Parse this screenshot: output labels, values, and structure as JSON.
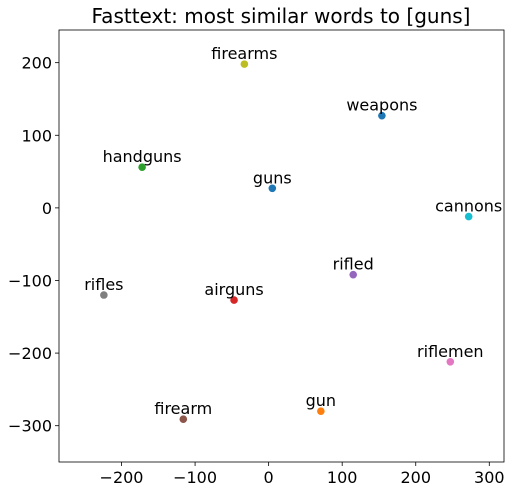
{
  "chart_data": {
    "type": "scatter",
    "title": "Fasttext: most similar words to [guns]",
    "xlabel": "",
    "ylabel": "",
    "xlim": [
      -285,
      320
    ],
    "ylim": [
      -350,
      245
    ],
    "xticks": [
      -200,
      -100,
      0,
      100,
      200,
      300
    ],
    "yticks": [
      200,
      100,
      0,
      -100,
      -200,
      -300
    ],
    "xtick_labels": [
      "−200",
      "−100",
      "0",
      "100",
      "200",
      "300"
    ],
    "ytick_labels": [
      "200",
      "100",
      "0",
      "−100",
      "−200",
      "−300"
    ],
    "grid": false,
    "points": [
      {
        "label": "guns",
        "x": 5,
        "y": 27,
        "color": "#1f77b4"
      },
      {
        "label": "gun",
        "x": 71,
        "y": -280,
        "color": "#ff7f0e"
      },
      {
        "label": "handguns",
        "x": -172,
        "y": 56,
        "color": "#2ca02c"
      },
      {
        "label": "airguns",
        "x": -47,
        "y": -127,
        "color": "#d62728"
      },
      {
        "label": "rifled",
        "x": 115,
        "y": -92,
        "color": "#9467bd"
      },
      {
        "label": "firearm",
        "x": -116,
        "y": -291,
        "color": "#8c564b"
      },
      {
        "label": "riflemen",
        "x": 247,
        "y": -212,
        "color": "#e377c2"
      },
      {
        "label": "rifles",
        "x": -224,
        "y": -120,
        "color": "#7f7f7f"
      },
      {
        "label": "firearms",
        "x": -33,
        "y": 198,
        "color": "#bcbd22"
      },
      {
        "label": "cannons",
        "x": 272,
        "y": -12,
        "color": "#17becf"
      },
      {
        "label": "weapons",
        "x": 154,
        "y": 127,
        "color": "#1f77b4"
      }
    ]
  }
}
